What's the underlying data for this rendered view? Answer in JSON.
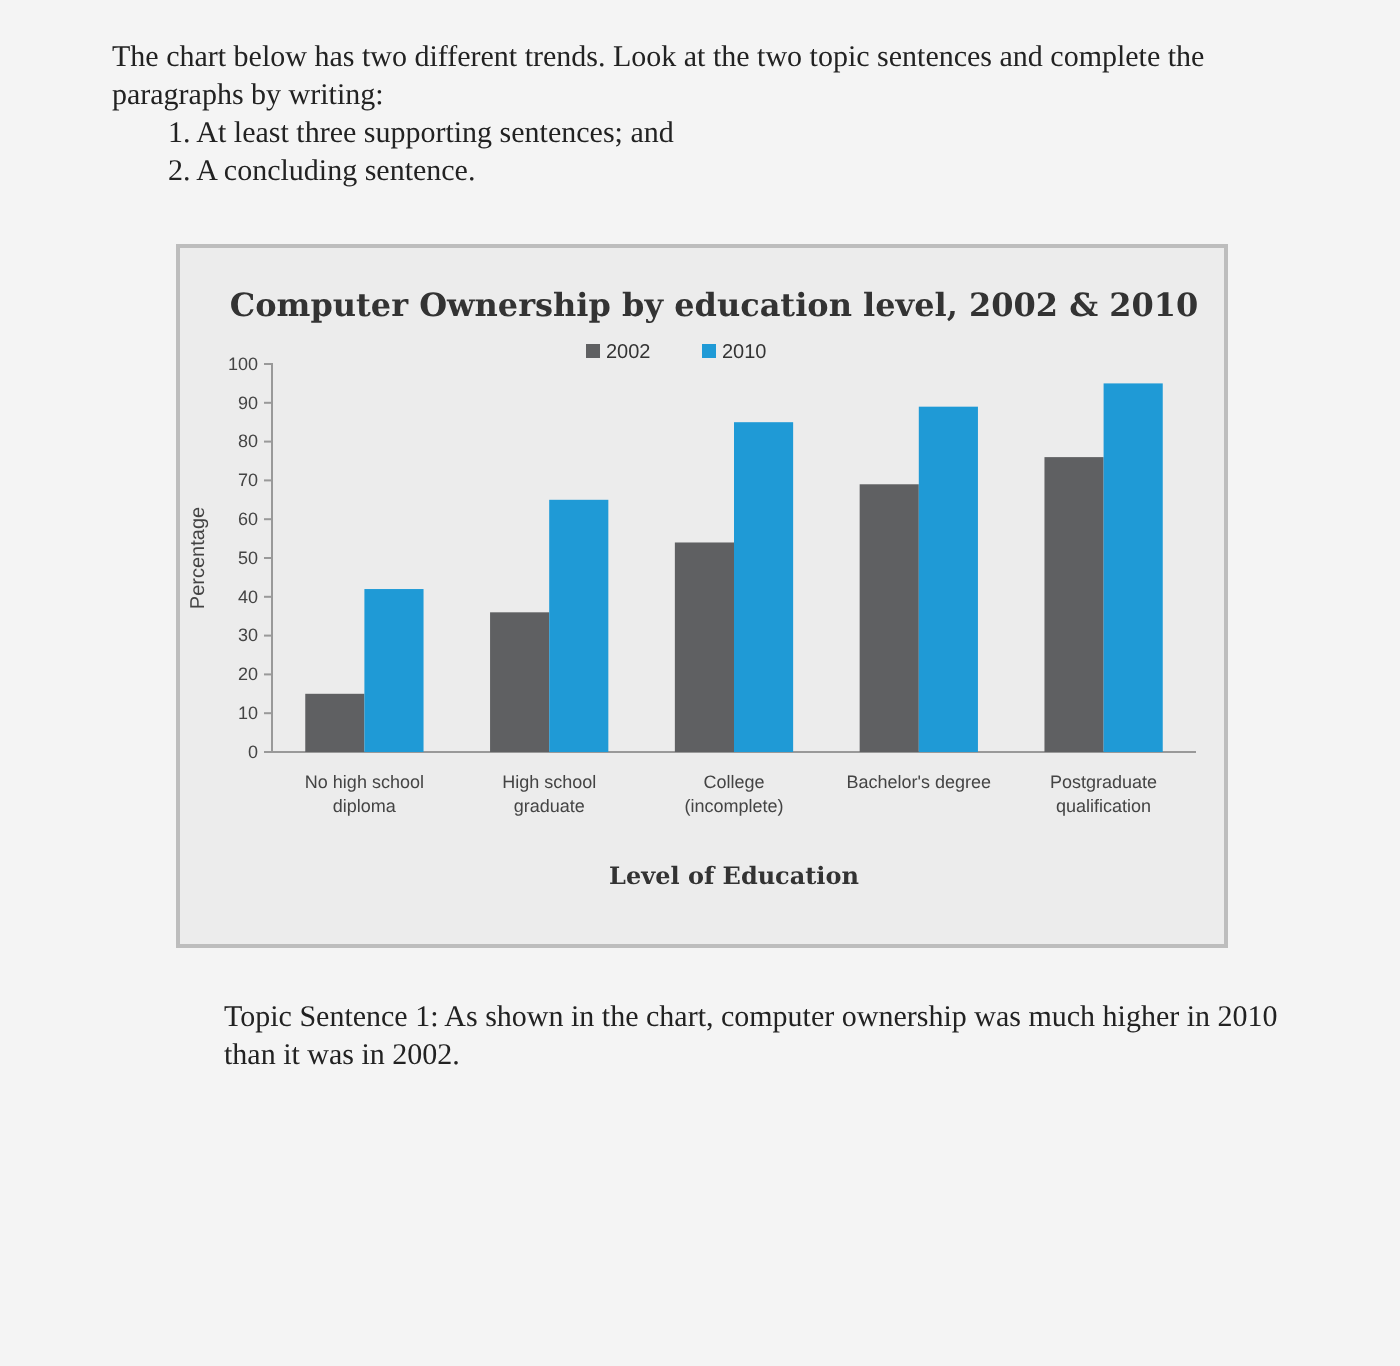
{
  "chart_data": {
    "type": "bar",
    "title": "Computer Ownership by education level, 2002 & 2010",
    "xlabel": "Level of Education",
    "ylabel": "Percentage",
    "categories": [
      "No high school\ndiploma",
      "High school\ngraduate",
      "College\n(incomplete)",
      "Bachelor's degree",
      "Postgraduate\nqualification"
    ],
    "series": [
      {
        "name": "2002",
        "color": "#5f6062",
        "values": [
          15,
          36,
          54,
          69,
          76
        ]
      },
      {
        "name": "2010",
        "color": "#1f9ad6",
        "values": [
          42,
          65,
          85,
          89,
          95
        ]
      }
    ],
    "ylim": [
      0,
      100
    ],
    "yticks": [
      0,
      10,
      20,
      30,
      40,
      50,
      60,
      70,
      80,
      90,
      100
    ],
    "grid": false,
    "legend": "top",
    "annotations": [
      "The chart below has two different trends. Look at the two topic sentences and complete the paragraphs by writing:",
      "1.  At least three supporting sentences; and",
      "2.  A concluding sentence.",
      "Topic Sentence 1: As shown in the chart, computer ownership was much higher in 2010 than it was in 2002."
    ]
  }
}
